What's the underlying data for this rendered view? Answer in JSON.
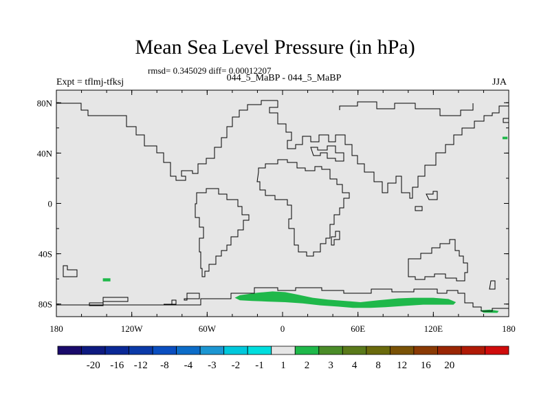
{
  "header": {
    "title": "Mean Sea Level Pressure (in hPa)",
    "stats": "rmsd= 0.345029 diff= 0.00012207",
    "subtitle": "044_5_MaBP - 044_5_MaBP",
    "left_label": "Expt = tflmj-tfksj",
    "right_label": "JJA"
  },
  "chart_data": {
    "type": "heatmap",
    "title": "Mean Sea Level Pressure (in hPa)",
    "projection": "cylindrical equidistant",
    "xlim": [
      -180,
      180
    ],
    "ylim": [
      -90,
      90
    ],
    "x_ticks": [
      {
        "value": -180,
        "label": "180"
      },
      {
        "value": -120,
        "label": "120W"
      },
      {
        "value": -60,
        "label": "60W"
      },
      {
        "value": 0,
        "label": "0"
      },
      {
        "value": 60,
        "label": "60E"
      },
      {
        "value": 120,
        "label": "120E"
      },
      {
        "value": 180,
        "label": "180"
      }
    ],
    "y_ticks": [
      {
        "value": 80,
        "label": "80N"
      },
      {
        "value": 40,
        "label": "40N"
      },
      {
        "value": 0,
        "label": "0"
      },
      {
        "value": -40,
        "label": "40S"
      },
      {
        "value": -80,
        "label": "80S"
      }
    ],
    "background_level": {
      "label": "-1 to 1",
      "color": "#e6e6e6"
    },
    "colorbar": {
      "colors": [
        "#1a0a6b",
        "#0e1a80",
        "#0a2896",
        "#0b3aa8",
        "#0a4ec0",
        "#0c6cc8",
        "#1c96d2",
        "#00c8dc",
        "#00dede",
        "#e6e6e6",
        "#1fb84a",
        "#4a8c28",
        "#5a7a1a",
        "#6a6a0c",
        "#7a5206",
        "#8a3a04",
        "#9a2604",
        "#b01a06",
        "#d00c0c"
      ],
      "labels": [
        "-20",
        "-16",
        "-12",
        "-8",
        "-4",
        "-3",
        "-2",
        "-1",
        "1",
        "2",
        "3",
        "4",
        "8",
        "12",
        "16",
        "20"
      ]
    },
    "anomaly_regions": [
      {
        "name": "Southern Ocean (Weddell to Indian sector)",
        "level": "1 to 2",
        "color": "#1fb84a",
        "lon": [
          -38,
          -34,
          -20,
          -8,
          2,
          12,
          24,
          36,
          50,
          62,
          76,
          92,
          104,
          120,
          132,
          138,
          136,
          128,
          112,
          96,
          82,
          70,
          56,
          44,
          30,
          16,
          2,
          -12,
          -24,
          -34
        ],
        "lat": [
          -75,
          -73,
          -71,
          -70,
          -70.5,
          -72.5,
          -75,
          -76.5,
          -77.5,
          -78.5,
          -77,
          -75.5,
          -75,
          -75,
          -76,
          -78.5,
          -80.5,
          -80.5,
          -80.5,
          -81.5,
          -82.5,
          -83,
          -83,
          -82,
          -81,
          -79.5,
          -78.5,
          -78,
          -77.5,
          -77
        ]
      },
      {
        "name": "South Pacific spot",
        "level": "1 to 2",
        "color": "#1fb84a",
        "lon": [
          -143,
          -137,
          -137,
          -143
        ],
        "lat": [
          -59.5,
          -59.5,
          -62,
          -62
        ]
      },
      {
        "name": "Ross Sea edge",
        "level": "1 to 2",
        "color": "#1fb84a",
        "lon": [
          157,
          165,
          172,
          171,
          160
        ],
        "lat": [
          -85,
          -84.5,
          -85.5,
          -87,
          -86.8
        ]
      },
      {
        "name": "North Pacific spot",
        "level": "1 to 2",
        "color": "#1fb84a",
        "lon": [
          175,
          179,
          179,
          175
        ],
        "lat": [
          53,
          53,
          51,
          51
        ]
      }
    ]
  }
}
